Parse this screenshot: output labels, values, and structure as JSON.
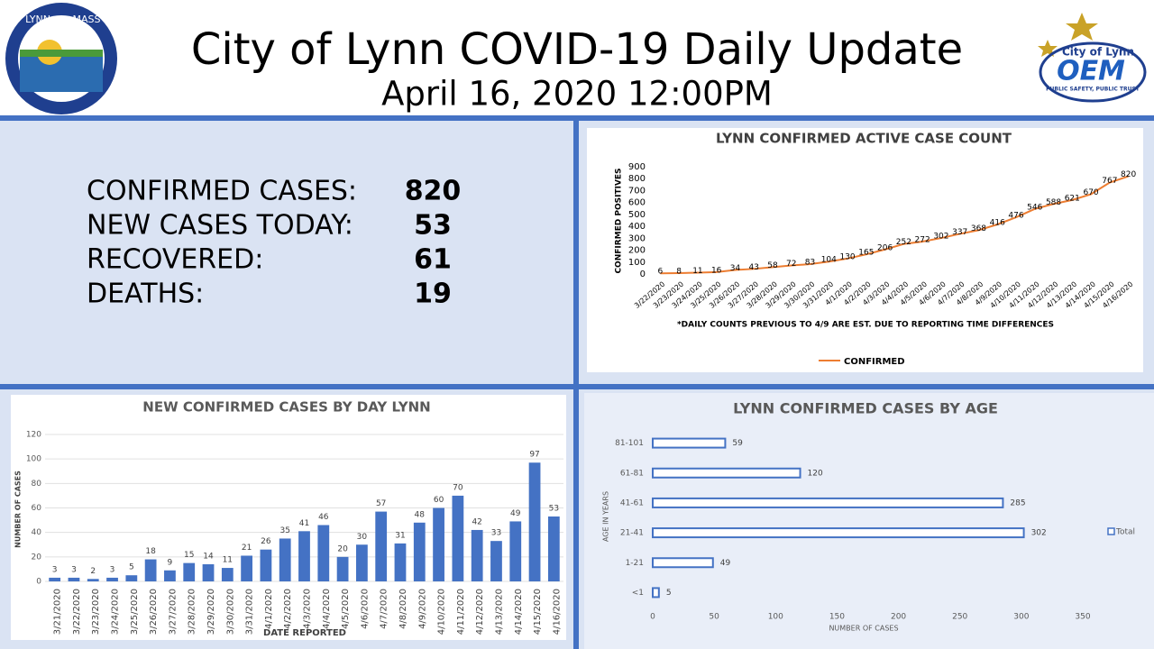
{
  "header": {
    "title": "City of Lynn COVID-19 Daily Update",
    "subtitle": "April 16, 2020 12:00PM",
    "logo_left": [
      "LYNN",
      "MASS"
    ],
    "logo_right": [
      "City of Lynn",
      "OEM",
      "PUBLIC SAFETY, PUBLIC TRUST"
    ]
  },
  "stats": [
    {
      "label": "CONFIRMED CASES:",
      "value": 820
    },
    {
      "label": "NEW CASES TODAY:",
      "value": 53
    },
    {
      "label": "RECOVERED:",
      "value": 61
    },
    {
      "label": "DEATHS:",
      "value": 19
    }
  ],
  "chart_data": [
    {
      "type": "line",
      "title": "LYNN CONFIRMED ACTIVE CASE COUNT",
      "y_label": "CONFIRMED POSITIVES",
      "note": "*DAILY COUNTS PREVIOUS TO 4/9 ARE EST. DUE TO REPORTING TIME DIFFERENCES",
      "categories": [
        "3/22/2020",
        "3/23/2020",
        "3/24/2020",
        "3/25/2020",
        "3/26/2020",
        "3/27/2020",
        "3/28/2020",
        "3/29/2020",
        "3/30/2020",
        "3/31/2020",
        "4/1/2020",
        "4/2/2020",
        "4/3/2020",
        "4/4/2020",
        "4/5/2020",
        "4/6/2020",
        "4/7/2020",
        "4/8/2020",
        "4/9/2020",
        "4/10/2020",
        "4/11/2020",
        "4/12/2020",
        "4/13/2020",
        "4/14/2020",
        "4/15/2020",
        "4/16/2020"
      ],
      "series": [
        {
          "name": "CONFIRMED",
          "color": "#ed7d31",
          "values": [
            6,
            8,
            11,
            16,
            34,
            43,
            58,
            72,
            83,
            104,
            130,
            165,
            206,
            252,
            272,
            302,
            337,
            368,
            416,
            476,
            546,
            588,
            621,
            670,
            767,
            820
          ]
        }
      ],
      "ylim": [
        0,
        900
      ],
      "yticks": [
        0,
        100,
        200,
        300,
        400,
        500,
        600,
        700,
        800,
        900
      ],
      "legend": "bottom"
    },
    {
      "type": "bar",
      "title": "NEW CONFIRMED CASES BY DAY LYNN",
      "x_label": "DATE REPORTED",
      "y_label": "NUMBER OF CASES",
      "categories": [
        "3/21/2020",
        "3/22/2020",
        "3/23/2020",
        "3/24/2020",
        "3/25/2020",
        "3/26/2020",
        "3/27/2020",
        "3/28/2020",
        "3/29/2020",
        "3/30/2020",
        "3/31/2020",
        "4/1/2020",
        "4/2/2020",
        "4/3/2020",
        "4/4/2020",
        "4/5/2020",
        "4/6/2020",
        "4/7/2020",
        "4/8/2020",
        "4/9/2020",
        "4/10/2020",
        "4/11/2020",
        "4/12/2020",
        "4/13/2020",
        "4/14/2020",
        "4/15/2020",
        "4/16/2020"
      ],
      "values": [
        3,
        3,
        2,
        3,
        5,
        18,
        9,
        15,
        14,
        11,
        21,
        26,
        35,
        41,
        46,
        20,
        30,
        57,
        31,
        48,
        60,
        70,
        42,
        33,
        49,
        97,
        53
      ],
      "color": "#4472c4",
      "ylim": [
        0,
        120
      ],
      "yticks": [
        0,
        20,
        40,
        60,
        80,
        100,
        120
      ]
    },
    {
      "type": "barh",
      "title": "LYNN CONFIRMED CASES BY AGE",
      "x_label": "NUMBER OF CASES",
      "y_label": "AGE IN YEARS",
      "categories": [
        "81-101",
        "61-81",
        "41-61",
        "21-41",
        "1-21",
        "<1"
      ],
      "series": [
        {
          "name": "Total",
          "color": "#4472c4",
          "values": [
            59,
            120,
            285,
            302,
            49,
            5
          ]
        }
      ],
      "xlim": [
        0,
        350
      ],
      "xticks": [
        0,
        50,
        100,
        150,
        200,
        250,
        300,
        350
      ],
      "legend": "right"
    }
  ]
}
